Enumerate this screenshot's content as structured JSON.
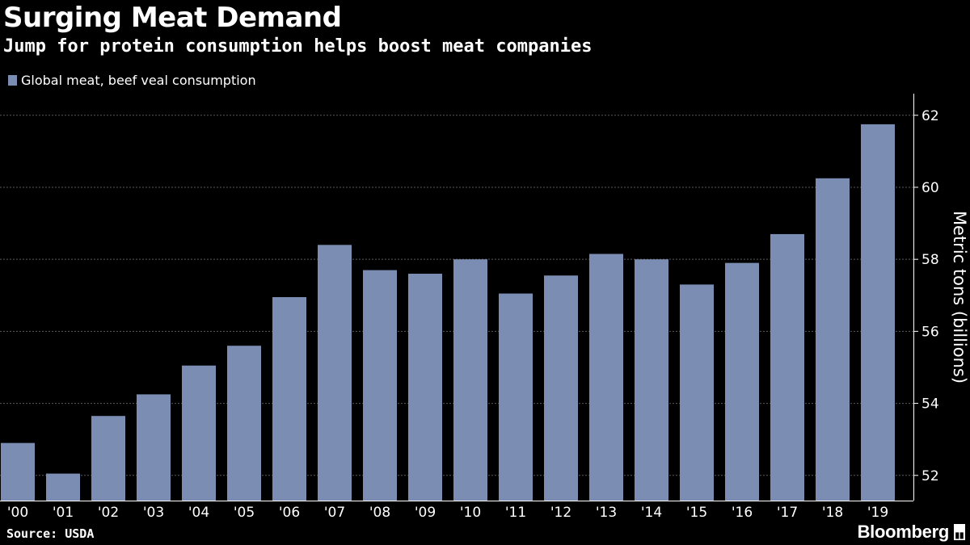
{
  "header": {
    "title": "Surging Meat Demand",
    "subtitle": "Jump for protein consumption helps boost meat companies"
  },
  "footer": {
    "source": "Source: USDA",
    "brand": "Bloomberg"
  },
  "colors": {
    "background": "#000000",
    "bar": "#7b8db3",
    "gridline": "#5a5a5a",
    "text": "#ffffff"
  },
  "chart_data": {
    "type": "bar",
    "categories": [
      "'00",
      "'01",
      "'02",
      "'03",
      "'04",
      "'05",
      "'06",
      "'07",
      "'08",
      "'09",
      "'10",
      "'11",
      "'12",
      "'13",
      "'14",
      "'15",
      "'16",
      "'17",
      "'18",
      "'19"
    ],
    "series": [
      {
        "name": "Global meat, beef veal consumption",
        "values": [
          52.9,
          52.05,
          53.65,
          54.25,
          55.05,
          55.6,
          56.95,
          58.4,
          57.7,
          57.6,
          58.0,
          57.05,
          57.55,
          58.15,
          58.0,
          57.3,
          57.9,
          58.7,
          60.25,
          61.75
        ]
      }
    ],
    "ylabel": "Metric tons (billions)",
    "ylim": [
      51.3,
      62.6
    ],
    "yticks": [
      52,
      54,
      56,
      58,
      60,
      62
    ],
    "grid": true,
    "legend": "top-left",
    "y_axis_side": "right"
  }
}
